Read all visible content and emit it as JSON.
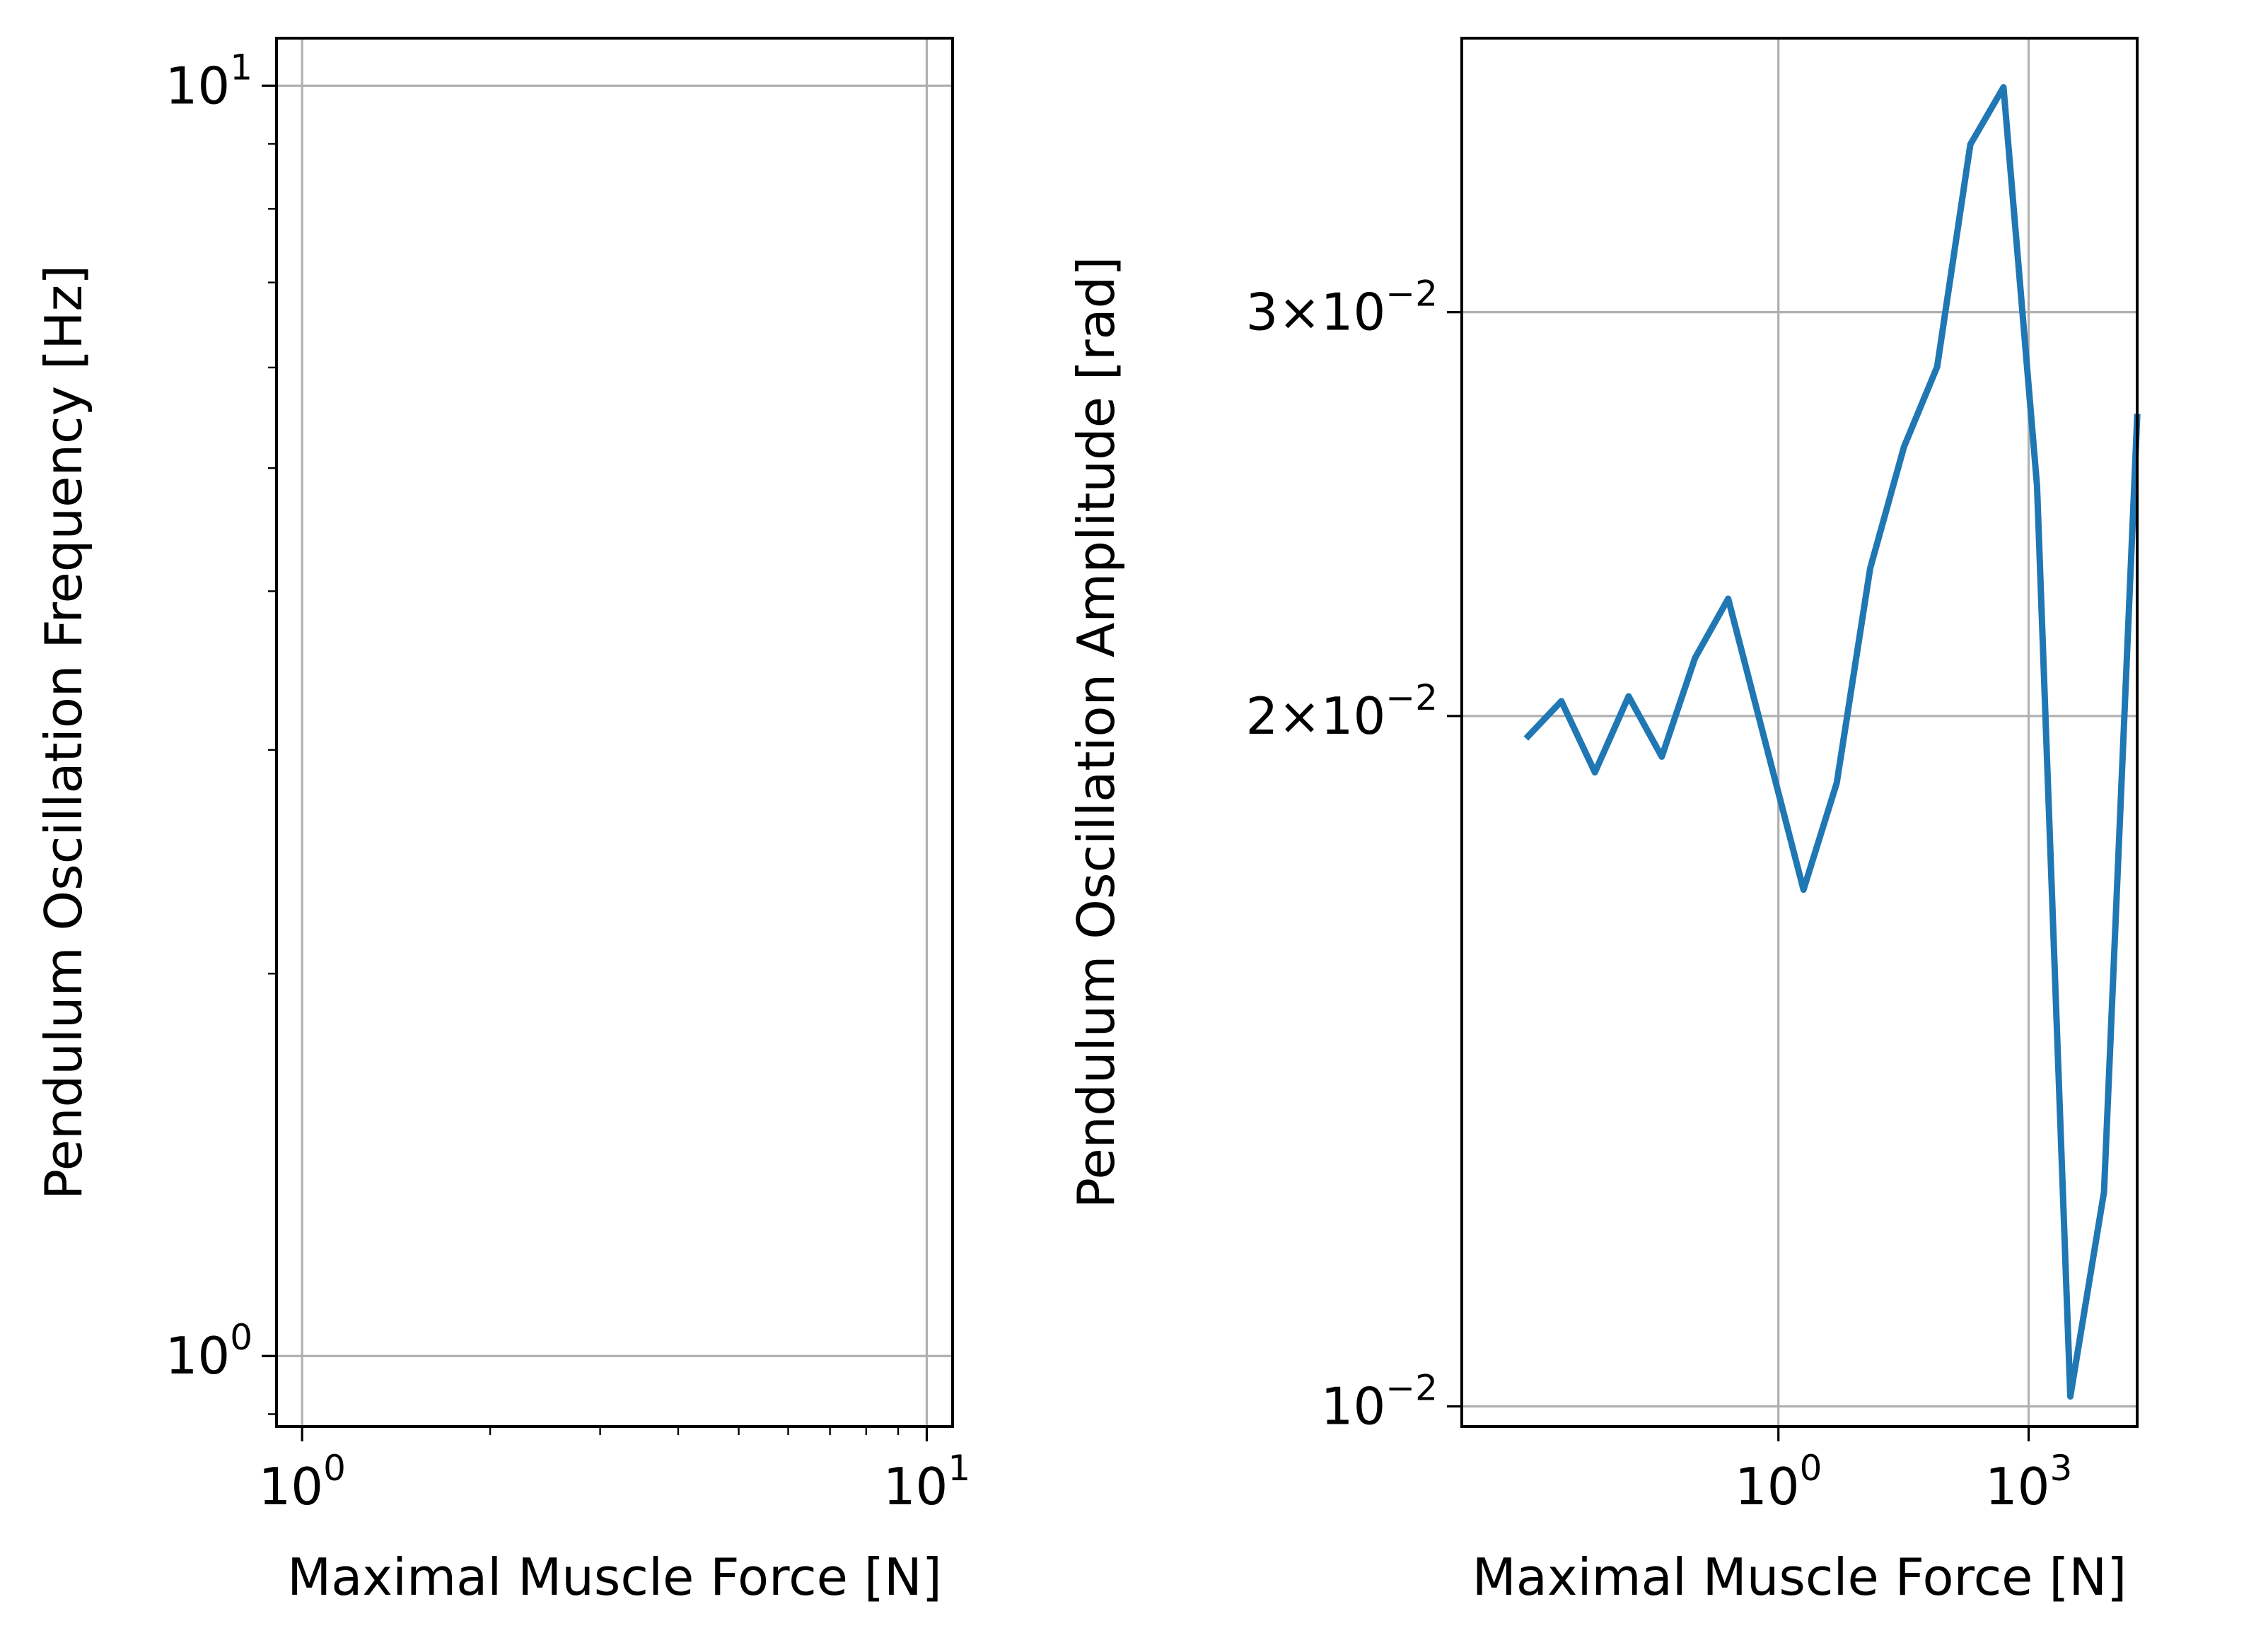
{
  "chart_data": [
    {
      "type": "line",
      "xlabel": "Maximal Muscle Force [N]",
      "ylabel": "Pendulum Oscillation Frequency [Hz]",
      "xscale": "log",
      "yscale": "log",
      "xlim": [
        0.91,
        11.0
      ],
      "ylim": [
        0.88,
        10.9
      ],
      "grid": true,
      "series": [],
      "xticks": [
        {
          "value": 1,
          "base": "10",
          "exp": "0"
        },
        {
          "value": 10,
          "base": "10",
          "exp": "1"
        }
      ],
      "yticks": [
        {
          "value": 1,
          "base": "10",
          "exp": "0"
        },
        {
          "value": 10,
          "base": "10",
          "exp": "1"
        }
      ]
    },
    {
      "type": "line",
      "xlabel": "Maximal Muscle Force [N]",
      "ylabel": "Pendulum Oscillation Amplitude [rad]",
      "xscale": "log",
      "yscale": "log",
      "xlim": [
        0.00016,
        20000
      ],
      "ylim": [
        0.0098,
        0.0395
      ],
      "grid": true,
      "color": "#1f77b4",
      "series": [
        {
          "x": [
            0.001,
            0.0025,
            0.0063,
            0.016,
            0.04,
            0.1,
            0.25,
            2.0,
            5.0,
            12.6,
            32,
            80,
            200,
            500,
            1260,
            3160,
            8000,
            20000
          ],
          "y": [
            0.0196,
            0.0203,
            0.0189,
            0.0204,
            0.0192,
            0.0212,
            0.0225,
            0.0168,
            0.0187,
            0.0232,
            0.0262,
            0.0284,
            0.0355,
            0.0376,
            0.0252,
            0.0101,
            0.0124,
            0.027
          ]
        }
      ],
      "xticks": [
        {
          "value": 1,
          "base": "10",
          "exp": "0"
        },
        {
          "value": 1000,
          "base": "10",
          "exp": "3"
        }
      ],
      "yticks": [
        {
          "value": 0.01,
          "mant": "",
          "base": "10",
          "exp": "−2"
        },
        {
          "value": 0.02,
          "mant": "2×",
          "base": "10",
          "exp": "−2"
        },
        {
          "value": 0.03,
          "mant": "3×",
          "base": "10",
          "exp": "−2"
        }
      ]
    }
  ]
}
